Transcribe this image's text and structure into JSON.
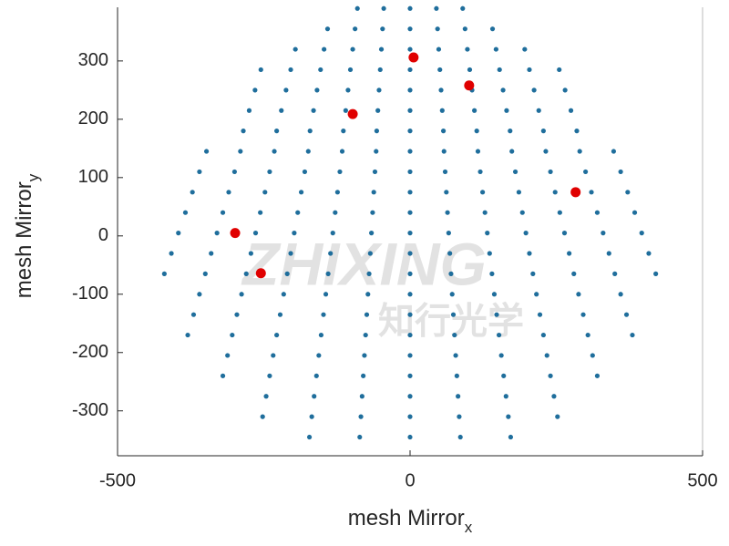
{
  "chart_data": {
    "type": "scatter",
    "xlabel": "mesh Mirror",
    "xlabel_sub": "x",
    "ylabel": "mesh Mirror",
    "ylabel_sub": "y",
    "watermark": [
      "ZHIXING",
      "知行光学"
    ],
    "xlim": [
      -500,
      500
    ],
    "ylim": [
      -377,
      392
    ],
    "xticks": [
      -500,
      0,
      500
    ],
    "yticks": [
      -300,
      -200,
      -100,
      0,
      100,
      200,
      300
    ],
    "series": [
      {
        "color": "#1f6e9c",
        "size": 2.6,
        "x": [
          -90,
          -45,
          0,
          45,
          90,
          -141,
          -94,
          -47,
          0,
          47,
          94,
          141,
          -196,
          -147,
          -98,
          -49,
          0,
          49,
          98,
          147,
          196,
          -255,
          -204,
          -153,
          -102,
          -51,
          0,
          51,
          102,
          153,
          204,
          255,
          -265,
          -212,
          -159,
          -106,
          -53,
          0,
          53,
          106,
          159,
          212,
          265,
          -275,
          -220,
          -165,
          -110,
          -55,
          0,
          55,
          110,
          165,
          220,
          275,
          -285,
          -228,
          -171,
          -114,
          -57,
          0,
          57,
          114,
          171,
          228,
          285,
          -348,
          -290,
          -232,
          -174,
          -116,
          -58,
          0,
          58,
          116,
          174,
          232,
          290,
          348,
          -360,
          -300,
          -240,
          -180,
          -120,
          -60,
          0,
          60,
          120,
          180,
          240,
          300,
          360,
          -372,
          -310,
          -248,
          -186,
          -124,
          -62,
          0,
          62,
          124,
          186,
          248,
          310,
          372,
          -384,
          -320,
          -256,
          -192,
          -128,
          -64,
          0,
          64,
          128,
          192,
          256,
          320,
          384,
          -396,
          -330,
          -264,
          -198,
          -132,
          -66,
          0,
          66,
          132,
          198,
          264,
          330,
          396,
          -408,
          -340,
          -272,
          -204,
          -136,
          -68,
          0,
          68,
          136,
          204,
          272,
          340,
          408,
          -420,
          -350,
          -280,
          -210,
          -140,
          -70,
          0,
          70,
          140,
          210,
          280,
          350,
          420,
          -360,
          -288,
          -216,
          -144,
          -72,
          0,
          72,
          144,
          216,
          288,
          360,
          -370,
          -296,
          -222,
          -148,
          -74,
          0,
          74,
          148,
          222,
          296,
          370,
          -380,
          -304,
          -228,
          -152,
          -76,
          0,
          76,
          152,
          228,
          304,
          380,
          -312,
          -234,
          -156,
          -78,
          0,
          78,
          156,
          234,
          312,
          -320,
          -240,
          -160,
          -80,
          0,
          80,
          160,
          240,
          320,
          -246,
          -164,
          -82,
          0,
          82,
          164,
          246,
          -252,
          -168,
          -84,
          0,
          84,
          168,
          252,
          -172,
          -86,
          0,
          86,
          172
        ],
        "y": [
          390,
          390,
          390,
          390,
          390,
          355,
          355,
          355,
          355,
          355,
          355,
          355,
          320,
          320,
          320,
          320,
          320,
          320,
          320,
          320,
          320,
          285,
          285,
          285,
          285,
          285,
          285,
          285,
          285,
          285,
          285,
          285,
          250,
          250,
          250,
          250,
          250,
          250,
          250,
          250,
          250,
          250,
          250,
          215,
          215,
          215,
          215,
          215,
          215,
          215,
          215,
          215,
          215,
          215,
          180,
          180,
          180,
          180,
          180,
          180,
          180,
          180,
          180,
          180,
          180,
          145,
          145,
          145,
          145,
          145,
          145,
          145,
          145,
          145,
          145,
          145,
          145,
          145,
          110,
          110,
          110,
          110,
          110,
          110,
          110,
          110,
          110,
          110,
          110,
          110,
          110,
          75,
          75,
          75,
          75,
          75,
          75,
          75,
          75,
          75,
          75,
          75,
          75,
          75,
          40,
          40,
          40,
          40,
          40,
          40,
          40,
          40,
          40,
          40,
          40,
          40,
          40,
          5,
          5,
          5,
          5,
          5,
          5,
          5,
          5,
          5,
          5,
          5,
          5,
          5,
          -30,
          -30,
          -30,
          -30,
          -30,
          -30,
          -30,
          -30,
          -30,
          -30,
          -30,
          -30,
          -30,
          -65,
          -65,
          -65,
          -65,
          -65,
          -65,
          -65,
          -65,
          -65,
          -65,
          -65,
          -65,
          -65,
          -100,
          -100,
          -100,
          -100,
          -100,
          -100,
          -100,
          -100,
          -100,
          -100,
          -100,
          -135,
          -135,
          -135,
          -135,
          -135,
          -135,
          -135,
          -135,
          -135,
          -135,
          -135,
          -170,
          -170,
          -170,
          -170,
          -170,
          -170,
          -170,
          -170,
          -170,
          -170,
          -170,
          -205,
          -205,
          -205,
          -205,
          -205,
          -205,
          -205,
          -205,
          -205,
          -240,
          -240,
          -240,
          -240,
          -240,
          -240,
          -240,
          -240,
          -240,
          -275,
          -275,
          -275,
          -275,
          -275,
          -275,
          -275,
          -310,
          -310,
          -310,
          -310,
          -310,
          -310,
          -310,
          -345,
          -345,
          -345,
          -345,
          -345
        ]
      },
      {
        "color": "#e00000",
        "size": 5.5,
        "x": [
          -299,
          -255,
          -98,
          6,
          101,
          283
        ],
        "y": [
          5,
          -64,
          209,
          306,
          258,
          75
        ]
      }
    ]
  }
}
